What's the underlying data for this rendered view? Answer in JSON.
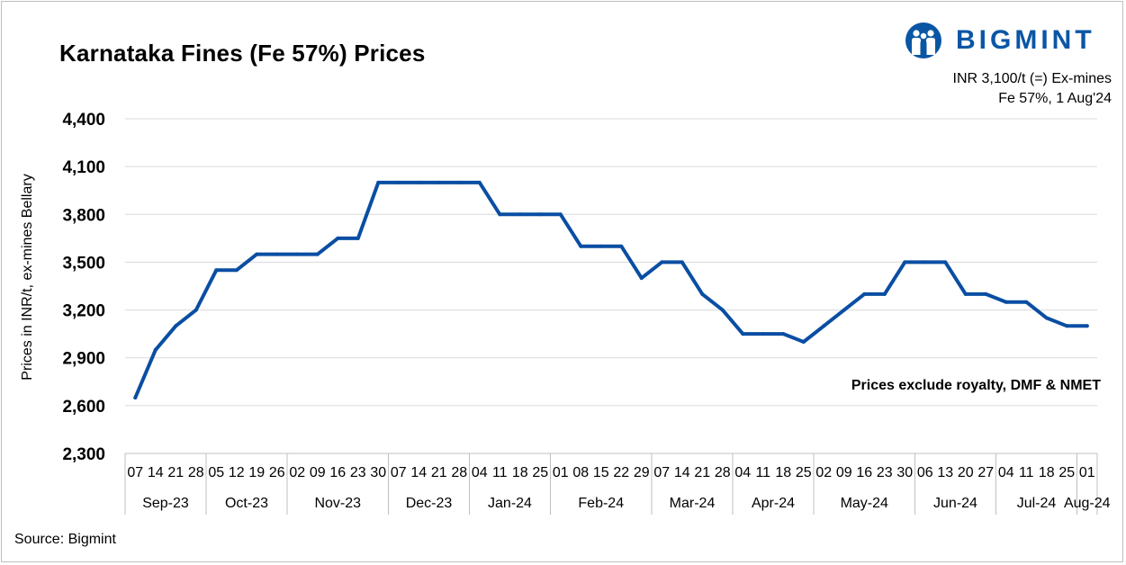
{
  "title": "Karnataka Fines (Fe 57%) Prices",
  "brand": {
    "name": "BIGMINT",
    "color": "#0a56a5",
    "icon": "people-logo-icon"
  },
  "info": {
    "line1": "INR 3,100/t (=) Ex-mines",
    "line2": "Fe 57%, 1 Aug'24"
  },
  "source": "Source: Bigmint",
  "note": "Prices exclude royalty, DMF & NMET",
  "chart_data": {
    "type": "line",
    "ylabel": "Prices in INR/t, ex-mines Bellary",
    "ylim": [
      2300,
      4400
    ],
    "yticks": [
      2300,
      2600,
      2900,
      3200,
      3500,
      3800,
      4100,
      4400
    ],
    "ytick_labels": [
      "2,300",
      "2,600",
      "2,900",
      "3,200",
      "3,500",
      "3,800",
      "4,100",
      "4,400"
    ],
    "grid": "horizontal",
    "line_color": "#0a4ea3",
    "x": [
      "07",
      "14",
      "21",
      "28",
      "05",
      "12",
      "19",
      "26",
      "02",
      "09",
      "16",
      "23",
      "30",
      "07",
      "14",
      "21",
      "28",
      "04",
      "11",
      "18",
      "25",
      "01",
      "08",
      "15",
      "22",
      "29",
      "07",
      "14",
      "21",
      "28",
      "04",
      "11",
      "18",
      "25",
      "02",
      "09",
      "16",
      "23",
      "30",
      "06",
      "13",
      "20",
      "27",
      "04",
      "11",
      "18",
      "25",
      "01"
    ],
    "months": [
      {
        "label": "Sep-23",
        "count": 4
      },
      {
        "label": "Oct-23",
        "count": 4
      },
      {
        "label": "Nov-23",
        "count": 5
      },
      {
        "label": "Dec-23",
        "count": 4
      },
      {
        "label": "Jan-24",
        "count": 4
      },
      {
        "label": "Feb-24",
        "count": 5
      },
      {
        "label": "Mar-24",
        "count": 4
      },
      {
        "label": "Apr-24",
        "count": 4
      },
      {
        "label": "May-24",
        "count": 5
      },
      {
        "label": "Jun-24",
        "count": 4
      },
      {
        "label": "Jul-24",
        "count": 4
      },
      {
        "label": "Aug-24",
        "count": 1
      }
    ],
    "series": [
      {
        "values": [
          2650,
          2950,
          3100,
          3200,
          3450,
          3450,
          3550,
          3550,
          3550,
          3550,
          3650,
          3650,
          4000,
          4000,
          4000,
          4000,
          4000,
          4000,
          3800,
          3800,
          3800,
          3800,
          3600,
          3600,
          3600,
          3400,
          3500,
          3500,
          3300,
          3200,
          3050,
          3050,
          3050,
          3000,
          3100,
          3200,
          3300,
          3300,
          3500,
          3500,
          3500,
          3300,
          3300,
          3250,
          3250,
          3150,
          3100,
          3100
        ]
      }
    ]
  }
}
